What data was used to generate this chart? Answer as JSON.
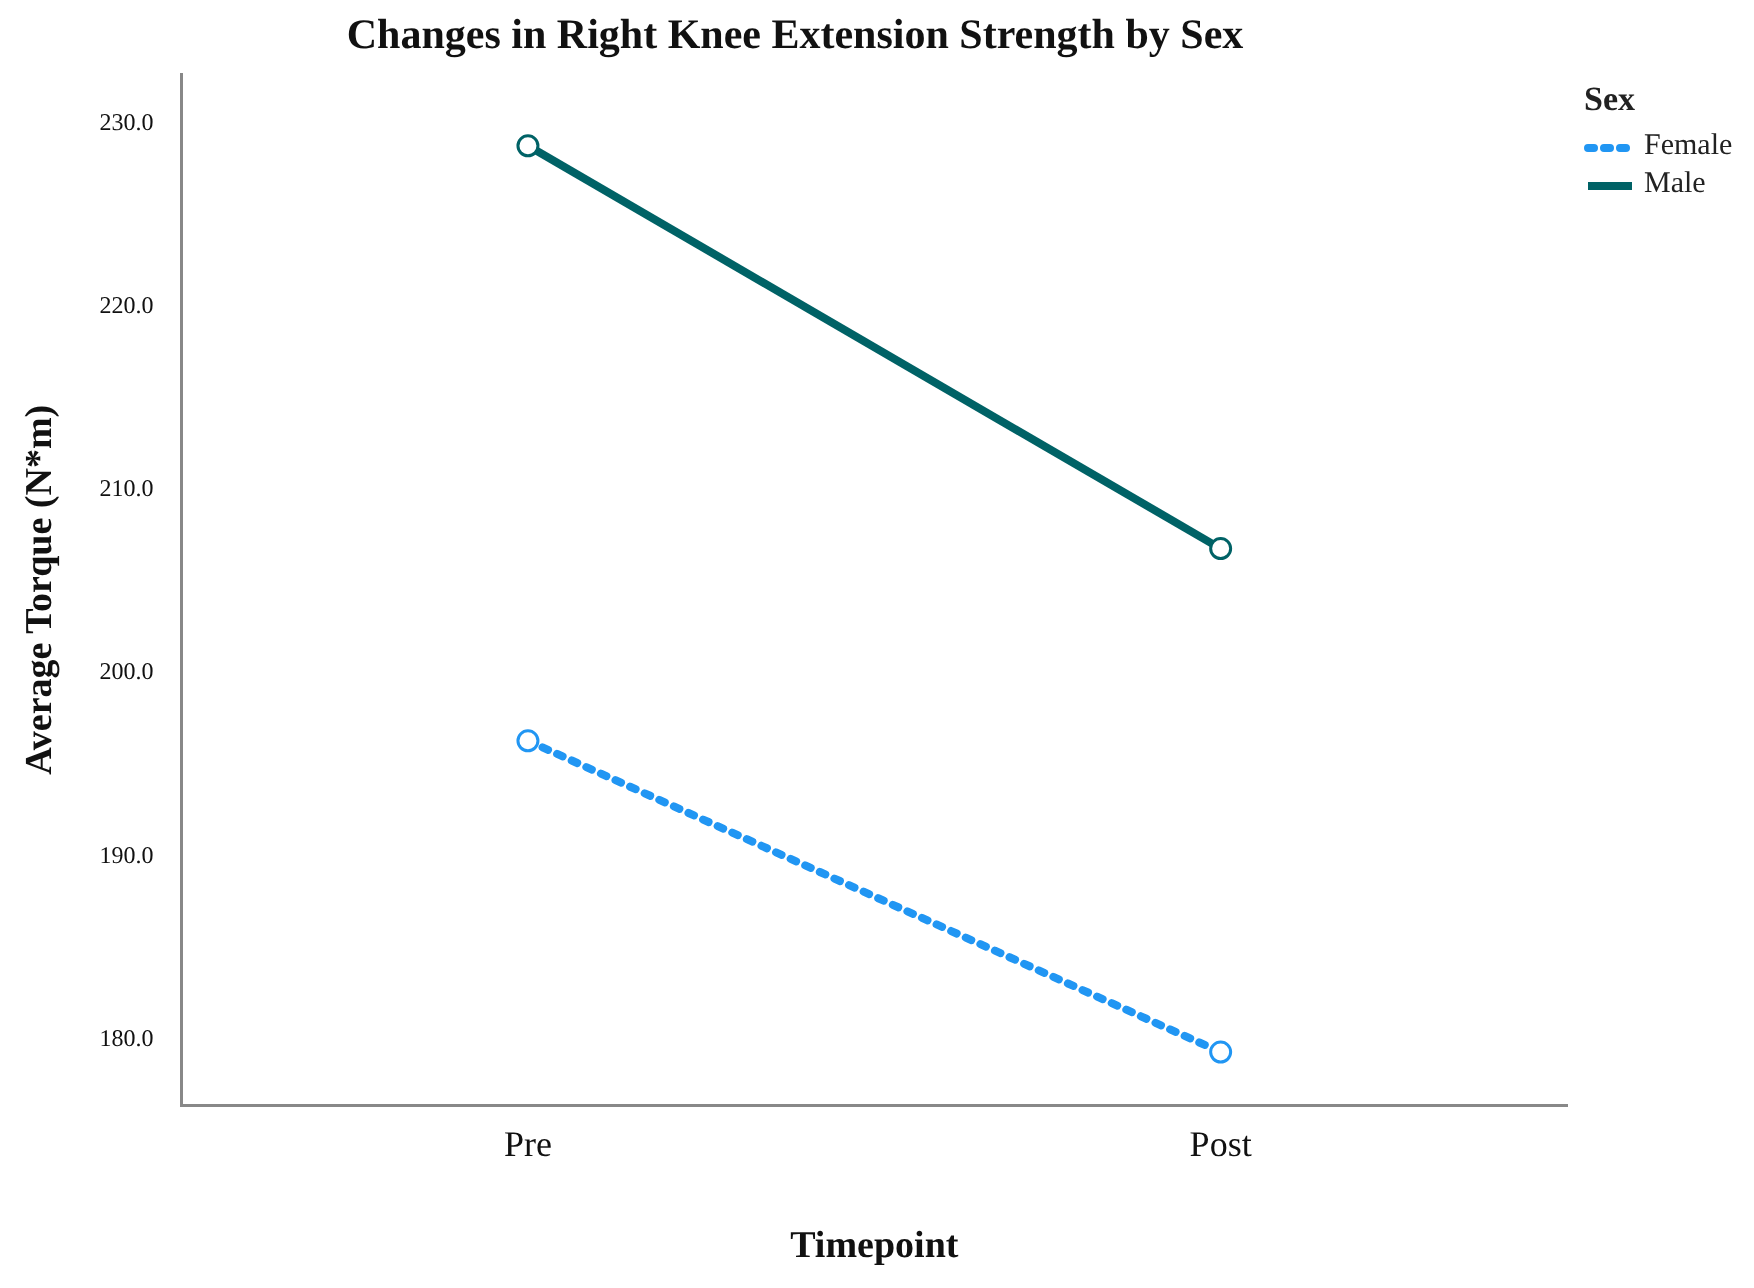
{
  "chart_data": {
    "type": "line",
    "title": "Changes in Right Knee Extension Strength by Sex",
    "xlabel": "Timepoint",
    "ylabel": "Average Torque (N*m)",
    "legend_title": "Sex",
    "categories": [
      "Pre",
      "Post"
    ],
    "series": [
      {
        "name": "Female",
        "color": "#2196f3",
        "line_style": "dotted",
        "values": [
          196.3,
          179.3
        ]
      },
      {
        "name": "Male",
        "color": "#006266",
        "line_style": "solid",
        "values": [
          228.8,
          206.8
        ]
      }
    ],
    "ylim": [
      176.4,
      232.7
    ],
    "yticks": [
      {
        "value": 180,
        "label": "180.0"
      },
      {
        "value": 190,
        "label": "190.0"
      },
      {
        "value": 200,
        "label": "200.0"
      },
      {
        "value": 210,
        "label": "210.0"
      },
      {
        "value": 220,
        "label": "220.0"
      },
      {
        "value": 230,
        "label": "230.0"
      }
    ],
    "grid": false,
    "legend": "top right",
    "marker": "circle"
  }
}
